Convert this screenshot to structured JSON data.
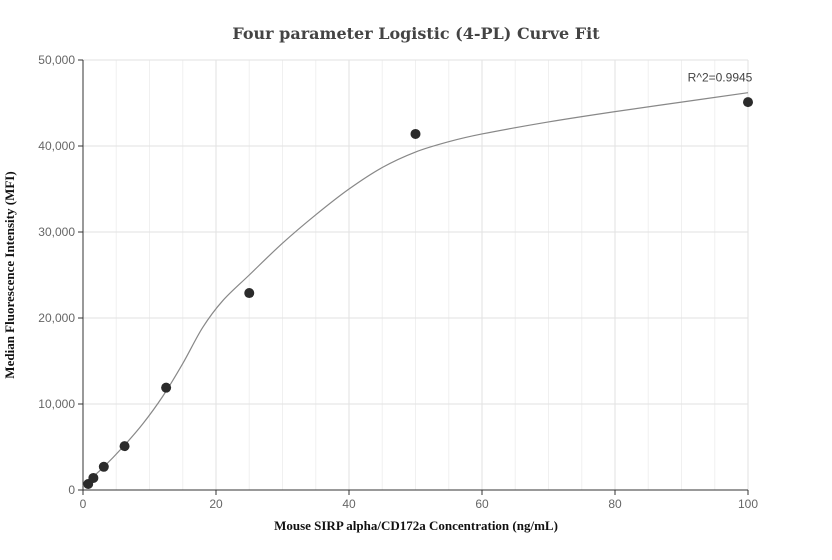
{
  "chart_data": {
    "type": "scatter",
    "title": "Four parameter Logistic (4-PL) Curve Fit",
    "xlabel": "Mouse SIRP alpha/CD172a Concentration (ng/mL)",
    "ylabel": "Median Fluorescence Intensity (MFI)",
    "xlim": [
      0,
      100
    ],
    "ylim": [
      0,
      50000
    ],
    "xticks": [
      0,
      20,
      40,
      60,
      80,
      100
    ],
    "yticks": [
      0,
      10000,
      20000,
      30000,
      40000,
      50000
    ],
    "xtick_labels": [
      "0",
      "20",
      "40",
      "60",
      "80",
      "100"
    ],
    "ytick_labels": [
      "0",
      "10,000",
      "20,000",
      "30,000",
      "40,000",
      "50,000"
    ],
    "grid": true,
    "annotation": "R^2=0.9945",
    "point_color": "#2b2b2b",
    "line_color": "#888888",
    "series": [
      {
        "points": [
          {
            "x": 0.78,
            "y": 700
          },
          {
            "x": 1.56,
            "y": 1400
          },
          {
            "x": 3.13,
            "y": 2700
          },
          {
            "x": 6.25,
            "y": 5100
          },
          {
            "x": 12.5,
            "y": 11900
          },
          {
            "x": 25,
            "y": 22900
          },
          {
            "x": 50,
            "y": 41400
          },
          {
            "x": 100,
            "y": 45100
          }
        ]
      }
    ],
    "fit_curve": {
      "x": [
        0,
        3,
        6,
        9,
        12,
        15,
        18,
        21,
        25,
        30,
        35,
        40,
        45,
        50,
        55,
        60,
        70,
        80,
        90,
        100
      ],
      "y": [
        500,
        2600,
        5000,
        7700,
        10900,
        14700,
        18900,
        22000,
        25000,
        28700,
        32000,
        35000,
        37500,
        39300,
        40500,
        41400,
        42800,
        44000,
        45100,
        46200
      ]
    }
  }
}
